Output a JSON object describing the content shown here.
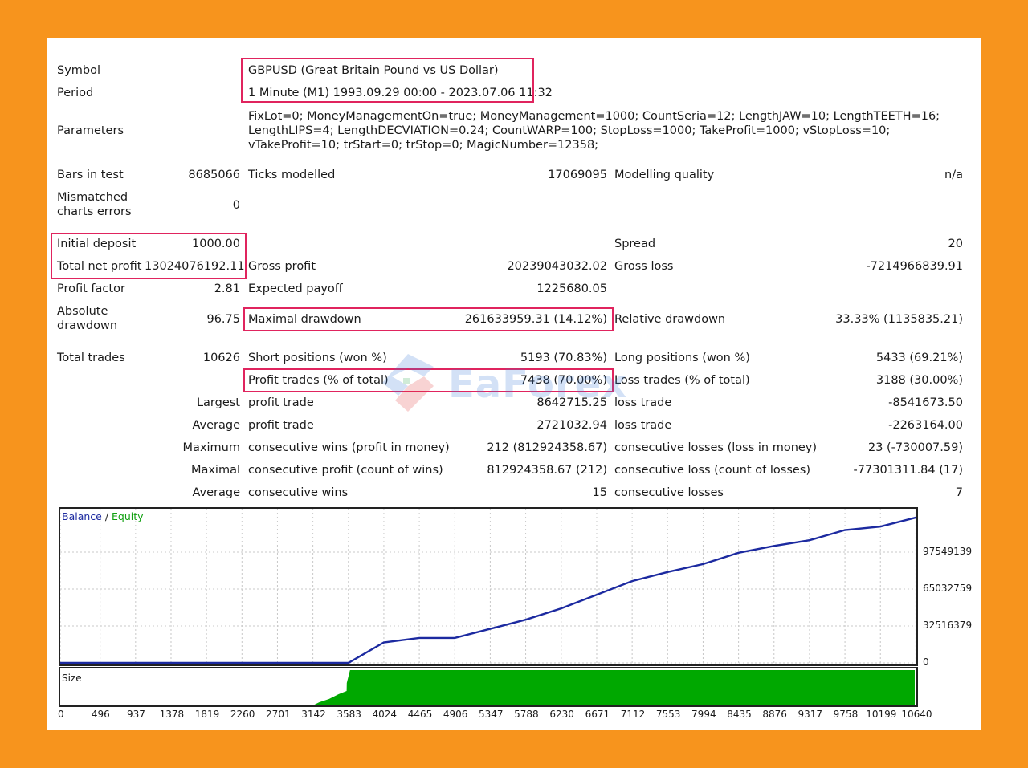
{
  "report": {
    "symbol_label": "Symbol",
    "symbol_value": "GBPUSD (Great Britain Pound vs US Dollar)",
    "period_label": "Period",
    "period_value": "1 Minute (M1) 1993.09.29 00:00 - 2023.07.06 11:32",
    "parameters_label": "Parameters",
    "parameters_value": "FixLot=0; MoneyManagementOn=true; MoneyManagement=1000; CountSeria=12; LengthJAW=10; LengthTEETH=16; LengthLIPS=4; LengthDECVIATION=0.24; CountWARP=100; StopLoss=1000; TakeProfit=1000; vStopLoss=10; vTakeProfit=10; trStart=0; trStop=0; MagicNumber=12358;",
    "bars_label": "Bars in test",
    "bars_value": "8685066",
    "ticks_label": "Ticks modelled",
    "ticks_value": "17069095",
    "quality_label": "Modelling quality",
    "quality_value": "n/a",
    "mismatched_label": "Mismatched charts errors",
    "mismatched_value": "0",
    "initial_deposit_label": "Initial deposit",
    "initial_deposit_value": "1000.00",
    "spread_label": "Spread",
    "spread_value": "20",
    "net_profit_label": "Total net profit",
    "net_profit_value": "13024076192.11",
    "gross_profit_label": "Gross profit",
    "gross_profit_value": "20239043032.02",
    "gross_loss_label": "Gross loss",
    "gross_loss_value": "-7214966839.91",
    "profit_factor_label": "Profit factor",
    "profit_factor_value": "2.81",
    "expected_payoff_label": "Expected payoff",
    "expected_payoff_value": "1225680.05",
    "abs_drawdown_label": "Absolute drawdown",
    "abs_drawdown_value": "96.75",
    "max_drawdown_label": "Maximal drawdown",
    "max_drawdown_value": "261633959.31 (14.12%)",
    "rel_drawdown_label": "Relative drawdown",
    "rel_drawdown_value": "33.33% (1135835.21)",
    "total_trades_label": "Total trades",
    "total_trades_value": "10626",
    "short_label": "Short positions (won %)",
    "short_value": "5193 (70.83%)",
    "long_label": "Long positions (won %)",
    "long_value": "5433 (69.21%)",
    "profit_trades_label": "Profit trades (% of total)",
    "profit_trades_value": "7438 (70.00%)",
    "loss_trades_label": "Loss trades (% of total)",
    "loss_trades_value": "3188 (30.00%)",
    "largest_label": "Largest",
    "largest_profit_label": "profit trade",
    "largest_profit_value": "8642715.25",
    "largest_loss_label": "loss trade",
    "largest_loss_value": "-8541673.50",
    "average_label": "Average",
    "average_profit_label": "profit trade",
    "average_profit_value": "2721032.94",
    "average_loss_label": "loss trade",
    "average_loss_value": "-2263164.00",
    "maximum_label": "Maximum",
    "max_wins_label": "consecutive wins (profit in money)",
    "max_wins_value": "212 (812924358.67)",
    "max_losses_label": "consecutive losses (loss in money)",
    "max_losses_value": "23 (-730007.59)",
    "maximal_label": "Maximal",
    "maximal_profit_label": "consecutive profit (count of wins)",
    "maximal_profit_value": "812924358.67 (212)",
    "maximal_loss_label": "consecutive loss (count of losses)",
    "maximal_loss_value": "-77301311.84 (17)",
    "avg2_label": "Average",
    "avg_wins_label": "consecutive wins",
    "avg_wins_value": "15",
    "avg_losses_label": "consecutive losses",
    "avg_losses_value": "7"
  },
  "watermark": "EaForex",
  "colors": {
    "background": "#f7941d",
    "highlight": "#e0245e",
    "balance": "#1c2aa0",
    "equity": "#10a010",
    "size_fill": "#00a800"
  },
  "chart_data": {
    "type": "line",
    "legend": [
      "Balance",
      "Equity"
    ],
    "series": [
      {
        "name": "Balance",
        "x": [
          0,
          3142,
          3583,
          4024,
          4465,
          4906,
          5347,
          5788,
          6230,
          6671,
          7112,
          7553,
          7994,
          8435,
          8876,
          9317,
          9758,
          10199,
          10640
        ],
        "values": [
          0,
          0,
          0,
          18000000,
          22000000,
          22000000,
          30000000,
          38000000,
          48000000,
          60000000,
          72000000,
          80000000,
          87000000,
          97000000,
          103000000,
          108000000,
          117000000,
          120000000,
          128000000
        ]
      }
    ],
    "y_ticks": [
      "97549139",
      "65032759",
      "32516379",
      "0"
    ],
    "y_tick_values": [
      97549139,
      65032759,
      32516379,
      0
    ],
    "ylim": [
      0,
      130065519
    ],
    "x_ticks": [
      "0",
      "496",
      "937",
      "1378",
      "1819",
      "2260",
      "2701",
      "3142",
      "3583",
      "4024",
      "4465",
      "4906",
      "5347",
      "5788",
      "6230",
      "6671",
      "7112",
      "7553",
      "7994",
      "8435",
      "8876",
      "9317",
      "9758",
      "10199",
      "10640"
    ],
    "x_tick_values": [
      0,
      496,
      937,
      1378,
      1819,
      2260,
      2701,
      3142,
      3583,
      4024,
      4465,
      4906,
      5347,
      5788,
      6230,
      6671,
      7112,
      7553,
      7994,
      8435,
      8876,
      9317,
      9758,
      10199,
      10640
    ],
    "xlim": [
      0,
      10626
    ],
    "size_label": "Size",
    "grid": true
  }
}
